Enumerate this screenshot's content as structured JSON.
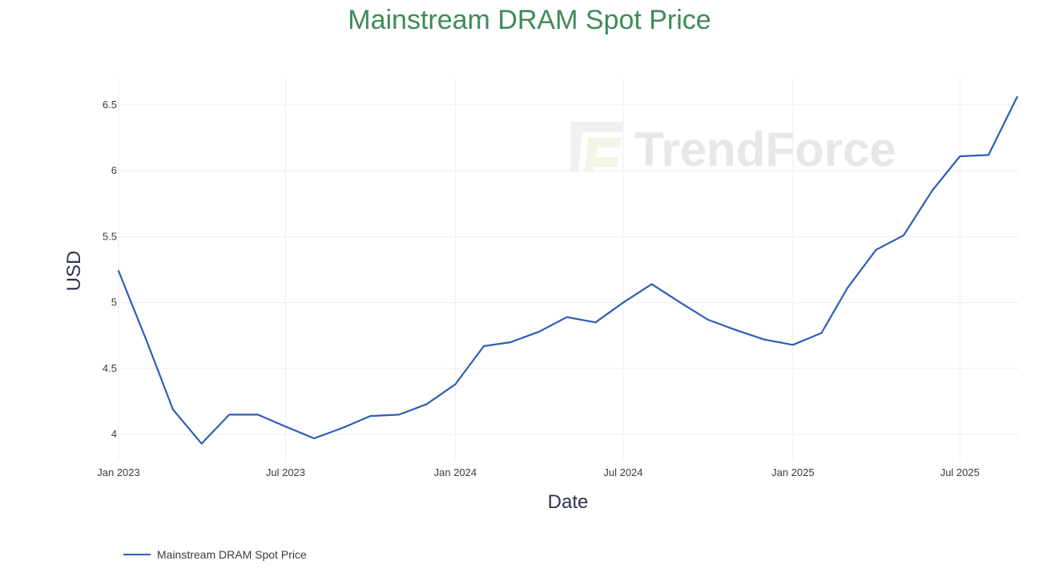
{
  "chart_data": {
    "type": "line",
    "title": "Mainstream DRAM Spot Price",
    "xlabel": "Date",
    "ylabel": "USD",
    "watermark": "TrendForce",
    "x_ticks": [
      {
        "date": "2023-01-01",
        "label": "Jan 2023"
      },
      {
        "date": "2023-07-01",
        "label": "Jul 2023"
      },
      {
        "date": "2024-01-01",
        "label": "Jan 2024"
      },
      {
        "date": "2024-07-01",
        "label": "Jul 2024"
      },
      {
        "date": "2025-01-01",
        "label": "Jan 2025"
      },
      {
        "date": "2025-07-01",
        "label": "Jul 2025"
      }
    ],
    "y_ticks": [
      4,
      4.5,
      5,
      5.5,
      6,
      6.5
    ],
    "y_tick_labels": [
      "4",
      "4.5",
      "5",
      "5.5",
      "6",
      "6.5"
    ],
    "ylim": [
      3.8,
      6.7
    ],
    "xlim": [
      "2023-01-01",
      "2025-09-03"
    ],
    "grid": true,
    "legend_position": "bottom-left",
    "series": [
      {
        "name": "Mainstream DRAM Spot Price",
        "color": "#2d5db8",
        "points": [
          {
            "x": "2023-01-01",
            "y": 5.24
          },
          {
            "x": "2023-02-01",
            "y": 4.7
          },
          {
            "x": "2023-03-01",
            "y": 4.19
          },
          {
            "x": "2023-04-01",
            "y": 3.93
          },
          {
            "x": "2023-05-01",
            "y": 4.15
          },
          {
            "x": "2023-06-01",
            "y": 4.15
          },
          {
            "x": "2023-07-01",
            "y": 4.06
          },
          {
            "x": "2023-08-01",
            "y": 3.97
          },
          {
            "x": "2023-09-01",
            "y": 4.05
          },
          {
            "x": "2023-10-01",
            "y": 4.14
          },
          {
            "x": "2023-11-01",
            "y": 4.15
          },
          {
            "x": "2023-12-01",
            "y": 4.23
          },
          {
            "x": "2024-01-01",
            "y": 4.38
          },
          {
            "x": "2024-02-01",
            "y": 4.67
          },
          {
            "x": "2024-03-01",
            "y": 4.7
          },
          {
            "x": "2024-04-01",
            "y": 4.78
          },
          {
            "x": "2024-05-01",
            "y": 4.89
          },
          {
            "x": "2024-06-01",
            "y": 4.85
          },
          {
            "x": "2024-07-01",
            "y": 5.0
          },
          {
            "x": "2024-08-01",
            "y": 5.14
          },
          {
            "x": "2024-09-01",
            "y": 5.0
          },
          {
            "x": "2024-10-01",
            "y": 4.87
          },
          {
            "x": "2024-11-01",
            "y": 4.79
          },
          {
            "x": "2024-12-01",
            "y": 4.72
          },
          {
            "x": "2025-01-01",
            "y": 4.68
          },
          {
            "x": "2025-02-01",
            "y": 4.77
          },
          {
            "x": "2025-03-01",
            "y": 5.11
          },
          {
            "x": "2025-04-01",
            "y": 5.4
          },
          {
            "x": "2025-05-01",
            "y": 5.51
          },
          {
            "x": "2025-06-01",
            "y": 5.85
          },
          {
            "x": "2025-07-01",
            "y": 6.11
          },
          {
            "x": "2025-08-01",
            "y": 6.12
          },
          {
            "x": "2025-09-01",
            "y": 6.56
          }
        ]
      }
    ]
  }
}
